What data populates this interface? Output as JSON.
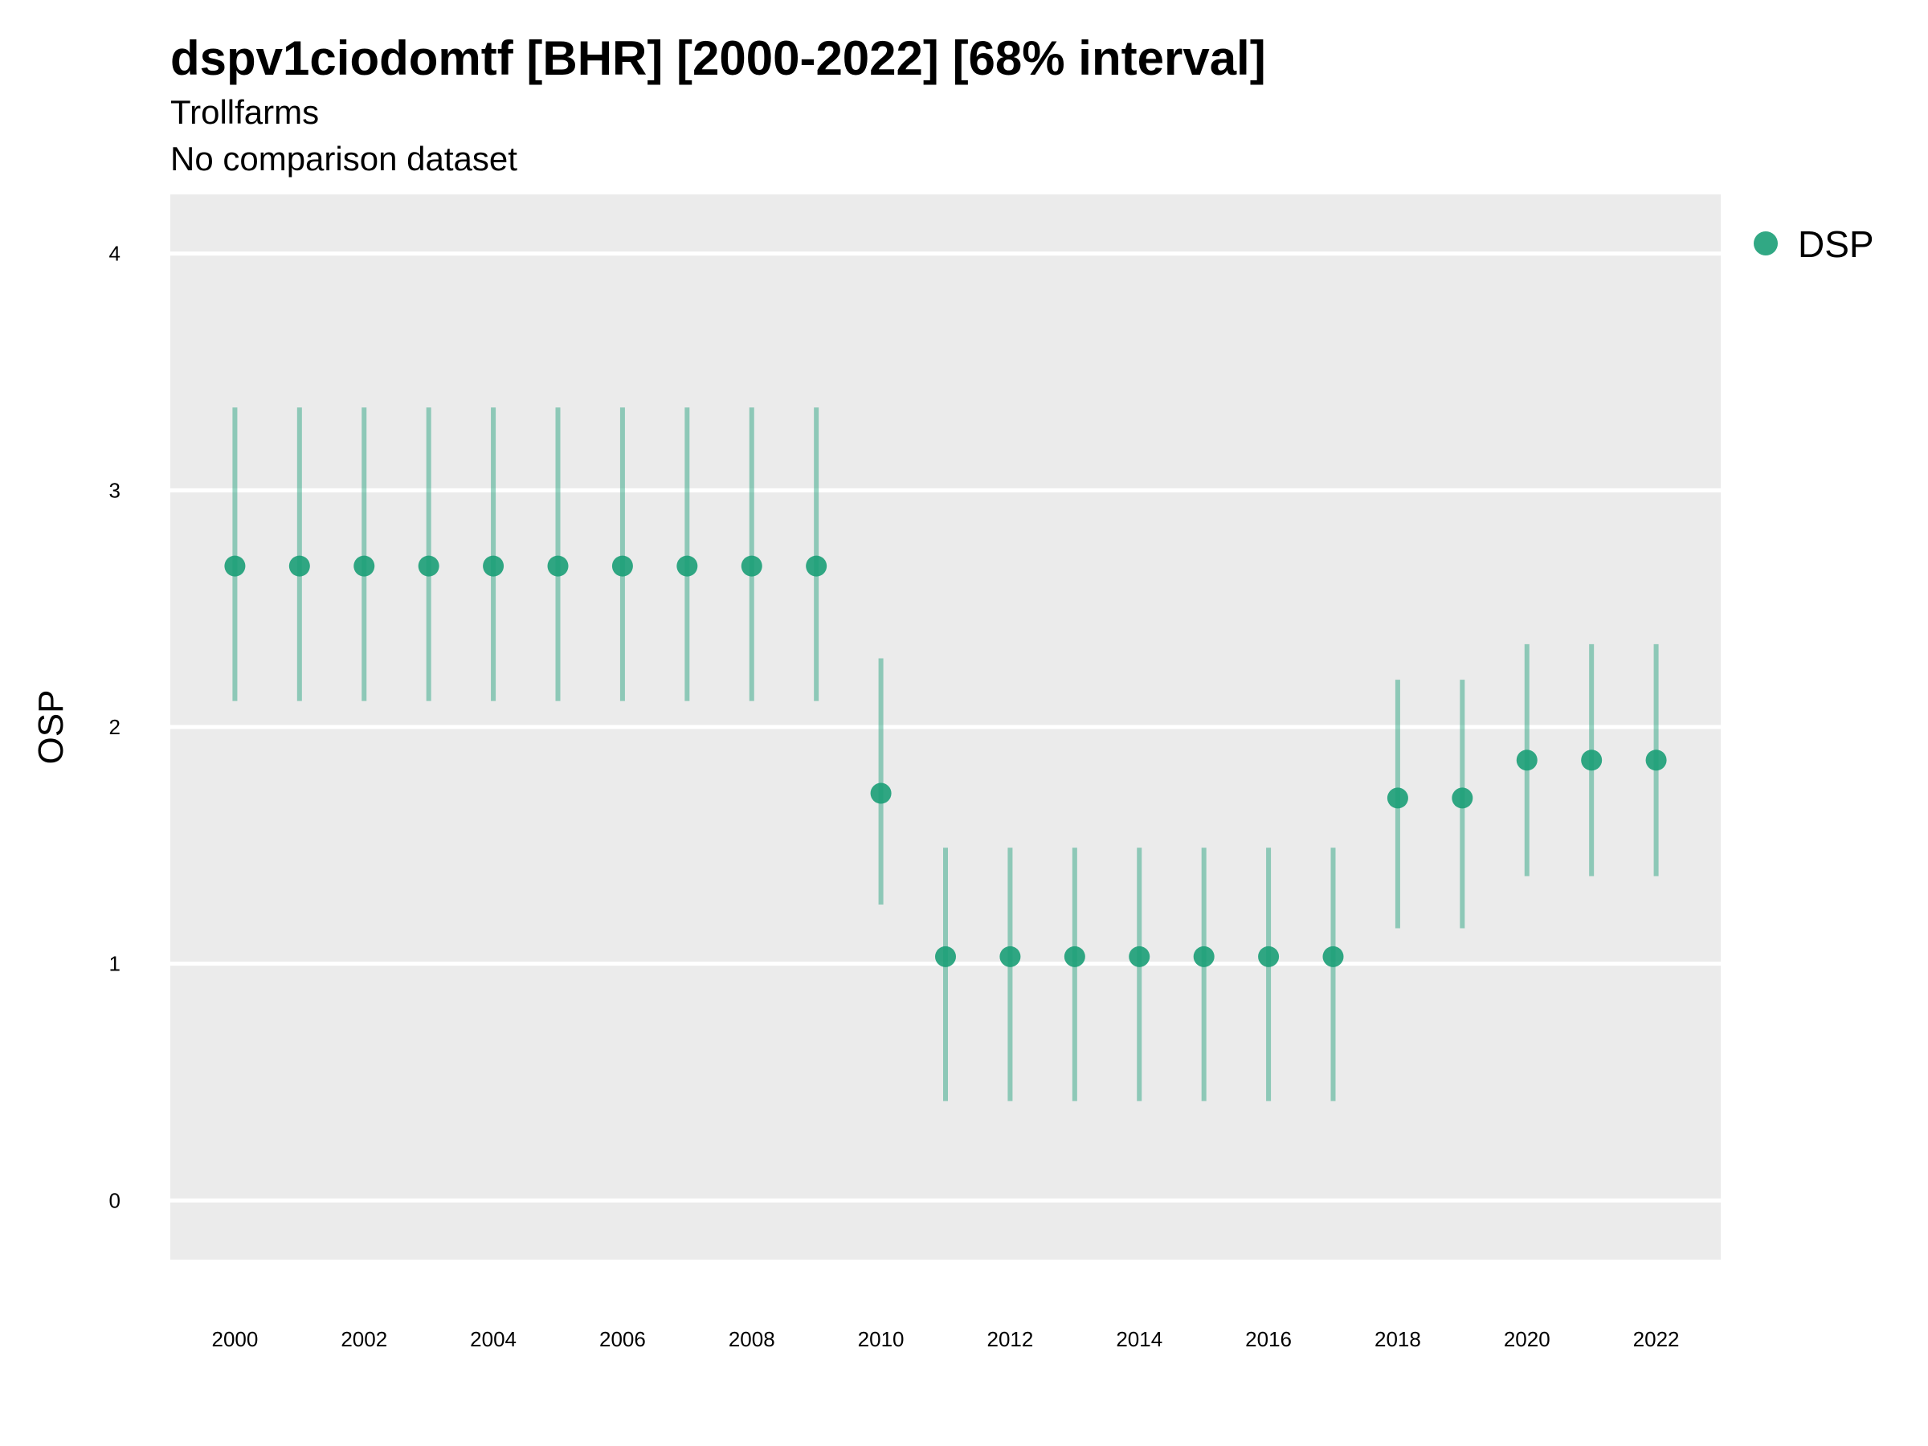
{
  "chart_data": {
    "type": "scatter",
    "title": "dspv1ciodomtf [BHR] [2000-2022] [68% interval]",
    "subtitle": "Trollfarms",
    "caption_line": "No comparison dataset",
    "xlabel": "",
    "ylabel": "OSP",
    "ylim": [
      -0.25,
      4.25
    ],
    "y_ticks": [
      0,
      1,
      2,
      3,
      4
    ],
    "x_ticks": [
      2000,
      2002,
      2004,
      2006,
      2008,
      2010,
      2012,
      2014,
      2016,
      2018,
      2020,
      2022
    ],
    "grid": true,
    "legend_position": "right",
    "series": [
      {
        "name": "DSP",
        "color": "#1b9e77",
        "x": [
          2000,
          2001,
          2002,
          2003,
          2004,
          2005,
          2006,
          2007,
          2008,
          2009,
          2010,
          2011,
          2012,
          2013,
          2014,
          2015,
          2016,
          2017,
          2018,
          2019,
          2020,
          2021,
          2022
        ],
        "y": [
          2.68,
          2.68,
          2.68,
          2.68,
          2.68,
          2.68,
          2.68,
          2.68,
          2.68,
          2.68,
          1.72,
          1.03,
          1.03,
          1.03,
          1.03,
          1.03,
          1.03,
          1.03,
          1.7,
          1.7,
          1.86,
          1.86,
          1.86
        ],
        "lower": [
          2.11,
          2.11,
          2.11,
          2.11,
          2.11,
          2.11,
          2.11,
          2.11,
          2.11,
          2.11,
          1.25,
          0.42,
          0.42,
          0.42,
          0.42,
          0.42,
          0.42,
          0.42,
          1.15,
          1.15,
          1.37,
          1.37,
          1.37
        ],
        "upper": [
          3.35,
          3.35,
          3.35,
          3.35,
          3.35,
          3.35,
          3.35,
          3.35,
          3.35,
          3.35,
          2.29,
          1.49,
          1.49,
          1.49,
          1.49,
          1.49,
          1.49,
          1.49,
          2.2,
          2.2,
          2.35,
          2.35,
          2.35
        ]
      }
    ]
  },
  "colors": {
    "panel_bg": "#ebebeb",
    "grid": "#ffffff",
    "point": "#1b9e77"
  }
}
